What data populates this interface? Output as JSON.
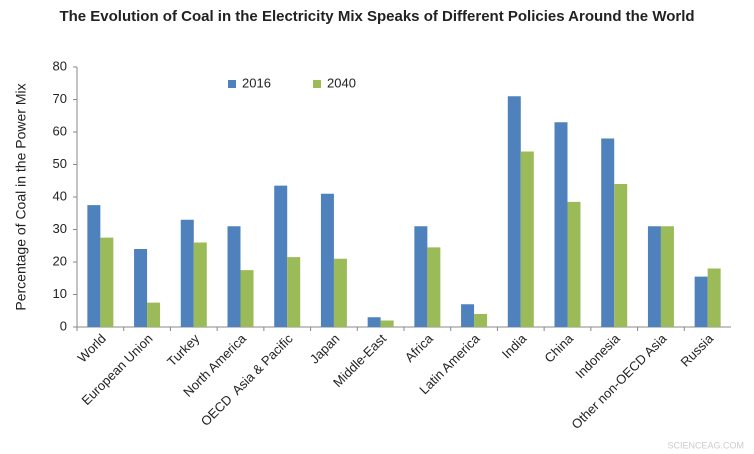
{
  "chart_data": {
    "type": "bar",
    "title": "The Evolution of Coal in the Electricity Mix Speaks of Different Policies Around the World",
    "y_label": "Percentage of Coal in the Power Mix",
    "watermark": "SCIENCEAG.COM",
    "categories": [
      "World",
      "European Union",
      "Turkey",
      "North America",
      "OECD  Asia & Pacific",
      "Japan",
      "Middle-East",
      "Africa",
      "Latin America",
      "India",
      "China",
      "Indonesia",
      "Other non-OECD Asia",
      "Russia"
    ],
    "series": [
      {
        "name": "2016",
        "color": "#4f81bd",
        "values": [
          37.5,
          24,
          33,
          31,
          43.5,
          41,
          3,
          31,
          7,
          71,
          63,
          58,
          31,
          15.5
        ]
      },
      {
        "name": "2040",
        "color": "#9bbb59",
        "values": [
          27.5,
          7.5,
          26,
          17.5,
          21.5,
          21,
          2,
          24.5,
          4,
          54,
          38.5,
          44,
          31,
          18
        ]
      }
    ],
    "ylim": [
      0,
      80
    ],
    "yticks": [
      0,
      10,
      20,
      30,
      40,
      50,
      60,
      70,
      80
    ],
    "grid": false,
    "legend": "top"
  }
}
